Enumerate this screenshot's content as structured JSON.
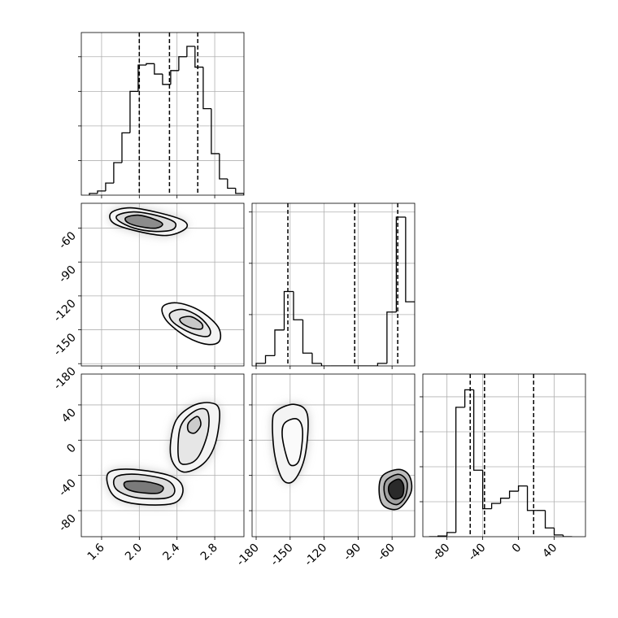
{
  "chart_data": [
    {
      "type": "histogram",
      "xlim": [
        1.385,
        3.11
      ],
      "ylim": [
        0,
        4.7
      ],
      "xticks": [
        1.6,
        {
          "value": 2,
          "label": "2.0"
        },
        2.4,
        2.8
      ],
      "yticks": [
        1,
        2,
        3,
        4
      ],
      "x_labels": false,
      "y_labels": false,
      "grid": true,
      "color": "#000000",
      "bins": [
        1.471,
        1.557,
        1.643,
        1.729,
        1.816,
        1.902,
        1.988,
        2.074,
        2.16,
        2.247,
        2.333,
        2.419,
        2.505,
        2.591,
        2.678,
        2.764,
        2.85,
        2.936,
        3.022,
        3.109
      ],
      "values": [
        0.05,
        0.12,
        0.35,
        0.94,
        1.8,
        3.0,
        3.76,
        3.8,
        3.5,
        3.2,
        3.6,
        4.0,
        4.3,
        3.7,
        2.5,
        1.2,
        0.47,
        0.2,
        0.05
      ],
      "quantiles": [
        2.0,
        2.32,
        2.62
      ]
    },
    {
      "type": "contour",
      "xlim": [
        1.385,
        3.11
      ],
      "ylim": [
        -182,
        -38
      ],
      "xticks": [
        1.6,
        {
          "value": 2,
          "label": "2.0"
        },
        2.4,
        2.8
      ],
      "yticks": [
        -180,
        -150,
        -120,
        -90,
        -60
      ],
      "x_labels": false,
      "y_labels": true,
      "grid": true,
      "levels": [
        {
          "color": "#f4f4f4",
          "x": [
            1.703,
            1.902,
            2.203,
            2.471,
            2.488,
            2.29,
            1.988,
            1.729
          ],
          "y": [
            -46.3,
            -42.0,
            -46.3,
            -53.5,
            -60.7,
            -66.5,
            -62.9,
            -55.7
          ]
        },
        {
          "color": "#dcdcdc",
          "x": [
            1.772,
            1.945,
            2.203,
            2.376,
            2.35,
            2.16,
            1.945,
            1.781
          ],
          "y": [
            -48.5,
            -45.6,
            -49.2,
            -55.0,
            -61.4,
            -62.9,
            -60.0,
            -53.5
          ]
        },
        {
          "color": "#8c8c8c",
          "x": [
            1.859,
            1.988,
            2.16,
            2.247,
            2.178,
            2.005,
            1.876
          ],
          "y": [
            -50.6,
            -48.5,
            -52.1,
            -56.4,
            -60.0,
            -58.6,
            -55.0
          ]
        },
        {
          "color": "#f4f4f4",
          "x": [
            2.247,
            2.402,
            2.634,
            2.833,
            2.85,
            2.721,
            2.505,
            2.29
          ],
          "y": [
            -129.8,
            -126.2,
            -132.7,
            -147.1,
            -160.0,
            -162.9,
            -156.4,
            -142.0
          ]
        },
        {
          "color": "#e4e4e4",
          "x": [
            2.333,
            2.462,
            2.634,
            2.747,
            2.73,
            2.591,
            2.419,
            2.333
          ],
          "y": [
            -134.8,
            -132.0,
            -138.4,
            -149.2,
            -155.7,
            -154.2,
            -147.1,
            -140.6
          ]
        },
        {
          "color": "#c8c8c8",
          "x": [
            2.436,
            2.548,
            2.66,
            2.66,
            2.557,
            2.453
          ],
          "y": [
            -139.9,
            -138.4,
            -144.2,
            -149.2,
            -148.5,
            -144.2
          ]
        }
      ]
    },
    {
      "type": "histogram",
      "xlim": [
        -183.6,
        -40
      ],
      "ylim": [
        0,
        3.17
      ],
      "xticks": [
        -180,
        -150,
        -120,
        -90,
        -60
      ],
      "yticks": [
        1,
        2,
        3
      ],
      "x_labels": false,
      "y_labels": false,
      "grid": true,
      "color": "#000000",
      "bins": [
        -180,
        -171.75,
        -163.5,
        -155.25,
        -147,
        -138.75,
        -130.5,
        -122.25,
        -114,
        -105.75,
        -97.5,
        -89.25,
        -81,
        -72.75,
        -64.5,
        -56.25,
        -48,
        -39.75
      ],
      "values": [
        0.05,
        0.2,
        0.7,
        1.45,
        0.9,
        0.25,
        0.05,
        0,
        0,
        0,
        0,
        0,
        0,
        0.05,
        1.05,
        2.9,
        1.25
      ],
      "quantiles": [
        -152,
        -93,
        -55
      ]
    },
    {
      "type": "contour",
      "xlim": [
        1.385,
        3.11
      ],
      "ylim": [
        -109.5,
        75
      ],
      "xticks": [
        1.6,
        {
          "value": 2,
          "label": "2.0"
        },
        2.4,
        2.8
      ],
      "yticks": [
        -80,
        -40,
        0,
        40
      ],
      "x_labels": true,
      "y_labels": true,
      "grid": true,
      "levels": [
        {
          "color": "#f4f4f4",
          "x": [
            1.686,
            1.945,
            2.333,
            2.462,
            2.376,
            2.031,
            1.772,
            1.669
          ],
          "y": [
            -36.0,
            -33.2,
            -40.6,
            -54.5,
            -71.1,
            -73.0,
            -66.5,
            -51.7
          ]
        },
        {
          "color": "#f4f4f4",
          "x": [
            2.333,
            2.376,
            2.548,
            2.747,
            2.85,
            2.807,
            2.678,
            2.462
          ],
          "y": [
            -17.5,
            19.4,
            37.9,
            42.5,
            33.2,
            -3.7,
            -26.8,
            -36.0
          ]
        },
        {
          "color": "#dcdcdc",
          "x": [
            1.772,
            1.988,
            2.29,
            2.376,
            2.29,
            1.988,
            1.798,
            1.729
          ],
          "y": [
            -40.6,
            -38.8,
            -45.2,
            -57.2,
            -65.6,
            -65.6,
            -59.1,
            -49.9
          ]
        },
        {
          "color": "#e6e6e6",
          "x": [
            2.419,
            2.436,
            2.591,
            2.721,
            2.73,
            2.635,
            2.523
          ],
          "y": [
            -22.2,
            14.8,
            33.2,
            33.2,
            10.2,
            -17.5,
            -26.8
          ]
        },
        {
          "color": "#7a7a7a",
          "x": [
            1.859,
            2.074,
            2.247,
            2.203,
            1.988,
            1.859
          ],
          "y": [
            -47.1,
            -47.1,
            -52.6,
            -60.0,
            -59.1,
            -54.5
          ]
        },
        {
          "color": "#cccccc",
          "x": [
            2.522,
            2.617,
            2.652,
            2.591,
            2.522
          ],
          "y": [
            19.4,
            26.8,
            17.5,
            8.3,
            10.2
          ]
        }
      ]
    },
    {
      "type": "contour",
      "xlim": [
        -183.6,
        -40
      ],
      "ylim": [
        -109.5,
        75
      ],
      "xticks": [
        -180,
        -150,
        -120,
        -90,
        -60
      ],
      "yticks": [
        -80,
        -40,
        0,
        40
      ],
      "x_labels": true,
      "y_labels": false,
      "grid": true,
      "levels": [
        {
          "color": "#f4f4f4",
          "x": [
            -162.0,
            -146.2,
            -134.7,
            -136.8,
            -146.2,
            -156.3,
            -163.5,
            -165.6
          ],
          "y": [
            33.2,
            40.6,
            28.6,
            -17.5,
            -45.2,
            -45.2,
            -17.5,
            19.4
          ]
        },
        {
          "color": "#fafafa",
          "x": [
            -154.8,
            -144.0,
            -139.0,
            -141.9,
            -149.1,
            -153.4,
            -157.0
          ],
          "y": [
            19.4,
            24.0,
            10.2,
            -22.2,
            -28.6,
            -17.5,
            5.5
          ]
        },
        {
          "color": "#bdbdbd",
          "x": [
            -68.5,
            -54.1,
            -44.7,
            -43.3,
            -54.1,
            -67.1,
            -71.4
          ],
          "y": [
            -40.6,
            -33.2,
            -40.6,
            -59.1,
            -77.6,
            -74.8,
            -59.1
          ]
        },
        {
          "color": "#a0a0a0",
          "x": [
            -64.9,
            -54.1,
            -46.9,
            -48.3,
            -55.5,
            -64.1,
            -67.1
          ],
          "y": [
            -45.2,
            -38.8,
            -47.1,
            -63.7,
            -73.0,
            -68.3,
            -56.3
          ]
        },
        {
          "color": "#2a2a2a",
          "x": [
            -62.0,
            -54.1,
            -49.8,
            -51.2,
            -58.4,
            -62.8
          ],
          "y": [
            -49.9,
            -44.3,
            -51.7,
            -63.7,
            -66.5,
            -59.1
          ]
        }
      ]
    },
    {
      "type": "histogram",
      "xlim": [
        -107,
        75
      ],
      "ylim": [
        0,
        4.65
      ],
      "xticks": [
        -80,
        -40,
        0,
        40
      ],
      "yticks": [
        1,
        2,
        3,
        4
      ],
      "x_labels": true,
      "y_labels": false,
      "grid": true,
      "color": "#000000",
      "bins": [
        -100,
        -90,
        -80,
        -70,
        -60,
        -50,
        -40,
        -30,
        -20,
        -10,
        0,
        10,
        20,
        30,
        40,
        50,
        60
      ],
      "values": [
        0,
        0.02,
        0.12,
        3.7,
        4.2,
        1.9,
        0.8,
        0.95,
        1.1,
        1.3,
        1.45,
        0.75,
        0.75,
        0.25,
        0.05,
        0
      ],
      "quantiles": [
        -54,
        -38,
        17
      ]
    }
  ]
}
